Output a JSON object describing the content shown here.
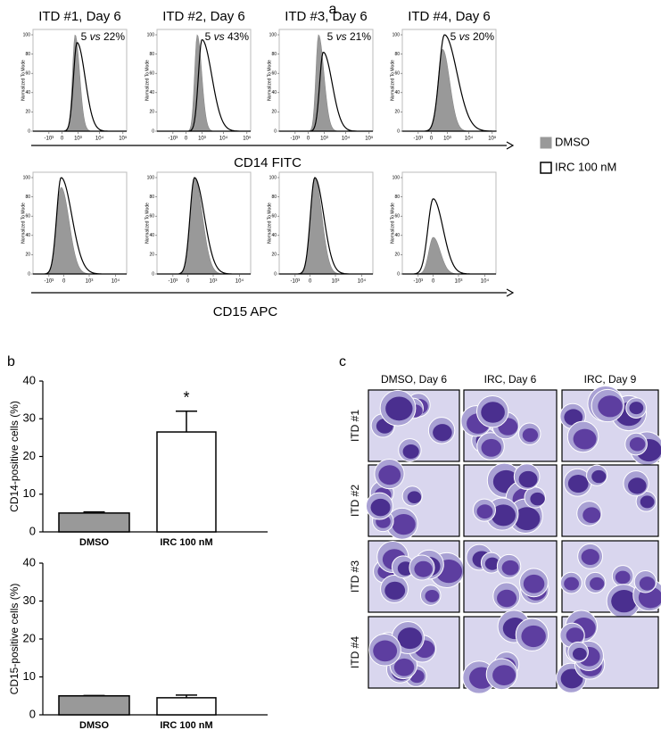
{
  "panel_a": {
    "label": "a",
    "y_axis_label": "Normalized To Mode",
    "yticks": [
      0,
      20,
      40,
      60,
      80,
      100
    ],
    "legend": [
      {
        "name": "DMSO",
        "color": "#999999"
      },
      {
        "name": "IRC 100 nM",
        "color": "#ffffff"
      }
    ],
    "rows": [
      {
        "axis_label": "CD14 FITC",
        "xtick_labels": [
          "-10³",
          "0",
          "10³",
          "10⁴",
          "10⁵"
        ],
        "plots": [
          {
            "title": "ITD #1, Day 6",
            "annotation": [
              "5",
              "vs",
              "22%"
            ],
            "dmso_peak": 100,
            "irc_peak": 92
          },
          {
            "title": "ITD #2, Day 6",
            "annotation": [
              "5",
              "vs",
              "43%"
            ],
            "dmso_peak": 100,
            "irc_peak": 95
          },
          {
            "title": "ITD #3, Day 6",
            "annotation": [
              "5",
              "vs",
              "21%"
            ],
            "dmso_peak": 100,
            "irc_peak": 82
          },
          {
            "title": "ITD #4, Day 6",
            "annotation": [
              "5",
              "vs",
              "20%"
            ],
            "dmso_peak": 85,
            "irc_peak": 100
          }
        ]
      },
      {
        "axis_label": "CD15 APC",
        "xtick_labels": [
          "-10³",
          "0",
          "10³",
          "10⁴"
        ],
        "plots": [
          {
            "dmso_peak": 90,
            "irc_peak": 100
          },
          {
            "dmso_peak": 100,
            "irc_peak": 100
          },
          {
            "dmso_peak": 100,
            "irc_peak": 100
          },
          {
            "dmso_peak": 38,
            "irc_peak": 78
          }
        ]
      }
    ]
  },
  "panel_b_label": "b",
  "chart_data": [
    {
      "type": "bar",
      "ylabel": "CD14-positive cells (%)",
      "categories": [
        "DMSO",
        "IRC 100 nM"
      ],
      "values": [
        5,
        26.5
      ],
      "errors": [
        0.3,
        5.5
      ],
      "colors": [
        "#999999",
        "#ffffff"
      ],
      "ylim": [
        0,
        40
      ],
      "yticks": [
        0,
        10,
        20,
        30,
        40
      ],
      "significance": "*"
    },
    {
      "type": "bar",
      "ylabel": "CD15-positive cells (%)",
      "categories": [
        "DMSO",
        "IRC 100 nM"
      ],
      "values": [
        5,
        4.5
      ],
      "errors": [
        0.1,
        0.7
      ],
      "colors": [
        "#999999",
        "#ffffff"
      ],
      "ylim": [
        0,
        40
      ],
      "yticks": [
        0,
        10,
        20,
        30,
        40
      ]
    }
  ],
  "panel_c": {
    "label": "c",
    "columns": [
      "DMSO, Day 6",
      "IRC, Day 6",
      "IRC, Day 9"
    ],
    "rows": [
      "ITD #1",
      "ITD #2",
      "ITD #3",
      "ITD #4"
    ]
  }
}
